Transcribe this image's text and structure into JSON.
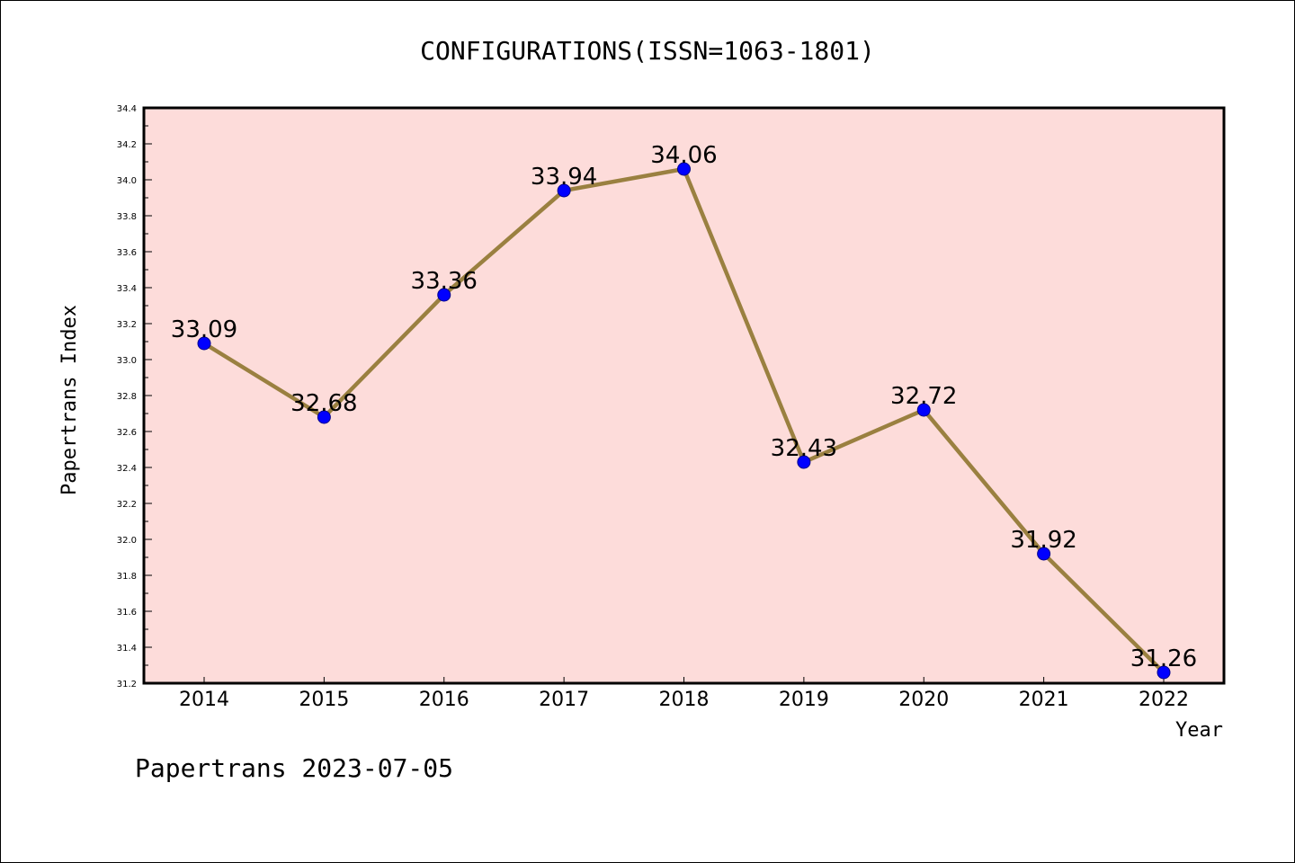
{
  "chart_data": {
    "type": "line",
    "title": "CONFIGURATIONS(ISSN=1063-1801)",
    "xlabel": "Year",
    "ylabel": "Papertrans Index",
    "categories": [
      "2014",
      "2015",
      "2016",
      "2017",
      "2018",
      "2019",
      "2020",
      "2021",
      "2022"
    ],
    "values": [
      33.09,
      32.68,
      33.36,
      33.94,
      34.06,
      32.43,
      32.72,
      31.92,
      31.26
    ],
    "data_labels": [
      "33.09",
      "32.68",
      "33.36",
      "33.94",
      "34.06",
      "32.43",
      "32.72",
      "31.92",
      "31.26"
    ],
    "ylim": [
      31.2,
      34.4
    ],
    "yticks": [
      "31.2",
      "31.4",
      "31.6",
      "31.8",
      "32.0",
      "32.2",
      "32.4",
      "32.6",
      "32.8",
      "33.0",
      "33.2",
      "33.4",
      "33.6",
      "33.8",
      "34.0",
      "34.2",
      "34.4"
    ],
    "grid": false,
    "colors": {
      "plot_background": "#fddcda",
      "line": "#9a8040",
      "marker": "#0000ff"
    }
  },
  "footer": "Papertrans 2023-07-05"
}
